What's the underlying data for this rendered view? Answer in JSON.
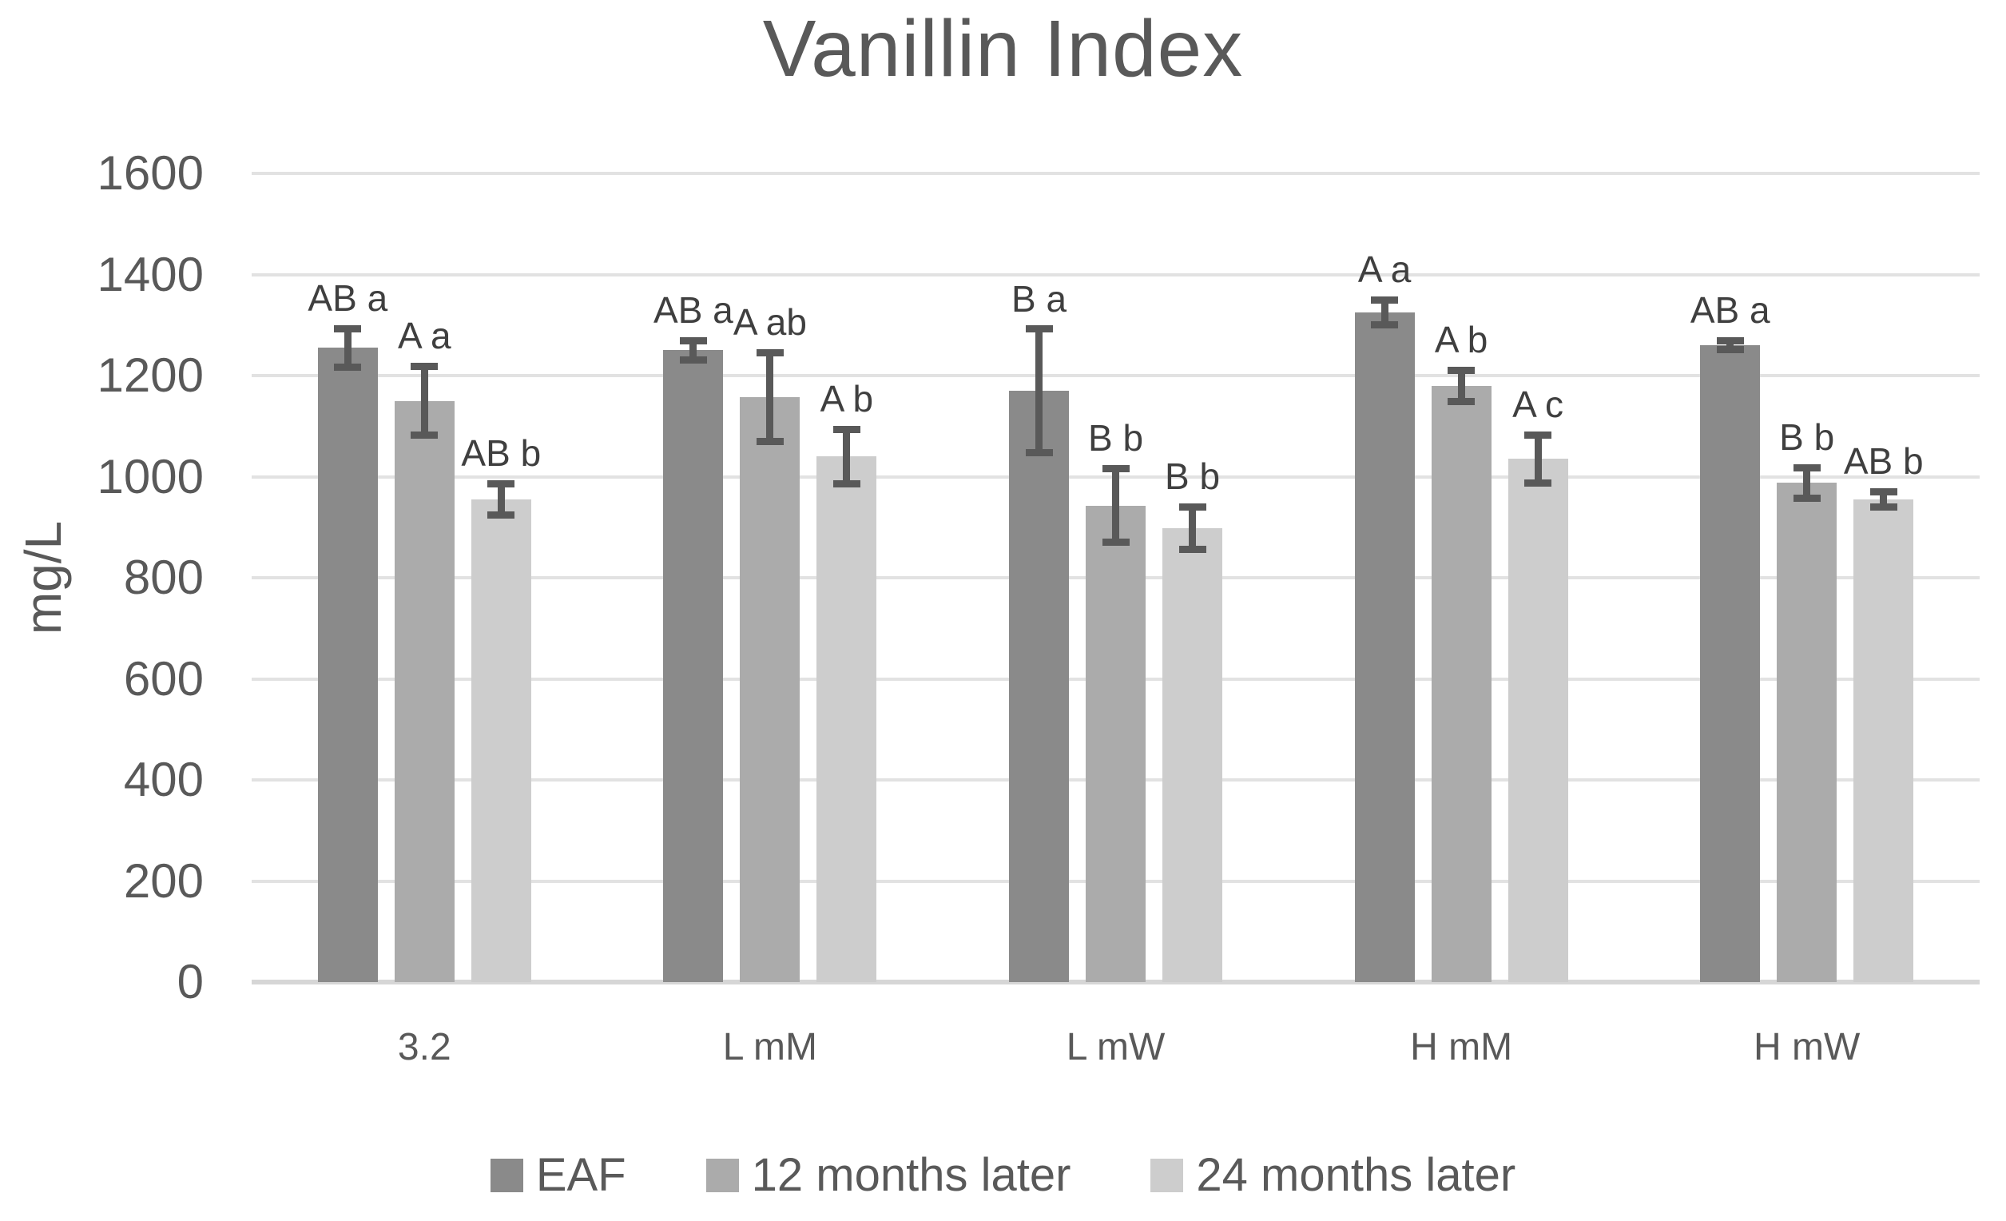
{
  "chart_data": {
    "type": "bar",
    "title": "Vanillin Index",
    "ylabel": "mg/L",
    "ylim": [
      0,
      1600
    ],
    "yticks": [
      0,
      200,
      400,
      600,
      800,
      1000,
      1200,
      1400,
      1600
    ],
    "grid": true,
    "legend_position": "bottom",
    "categories": [
      "3.2",
      "L mM",
      "L mW",
      "H mM",
      "H mW"
    ],
    "series": [
      {
        "name": "EAF",
        "color": "#8a8a8a",
        "values": [
          1255,
          1250,
          1170,
          1325,
          1260
        ],
        "errors": [
          38,
          19,
          122,
          24,
          9
        ],
        "sig_labels": [
          "AB a",
          "AB a",
          "B a",
          "A a",
          "AB a"
        ]
      },
      {
        "name": "12 months later",
        "color": "#ababab",
        "values": [
          1150,
          1157,
          943,
          1180,
          988
        ],
        "errors": [
          68,
          88,
          73,
          31,
          30
        ],
        "sig_labels": [
          "A a",
          "A ab",
          "B b",
          "A b",
          "B b"
        ]
      },
      {
        "name": "24 months later",
        "color": "#cdcdcd",
        "values": [
          955,
          1040,
          898,
          1035,
          955
        ],
        "errors": [
          31,
          54,
          42,
          48,
          15
        ],
        "sig_labels": [
          "AB b",
          "A b",
          "B b",
          "A c",
          "AB b"
        ]
      }
    ],
    "error_bar_color": "#595959",
    "gridline_color": "#e2e2e2",
    "text_color": "#595959",
    "sig_label_color": "#3f3f3f"
  }
}
